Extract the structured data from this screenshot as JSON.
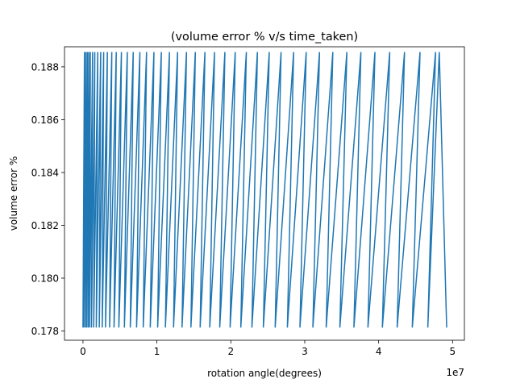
{
  "chart_data": {
    "type": "line",
    "title": "(volume error % v/s time_taken)",
    "xlabel": "rotation angle(degrees)",
    "ylabel": "volume error %",
    "x_offset_text": "1e7",
    "x_scale": 10000000,
    "xlim": [
      -0.25,
      5.16
    ],
    "ylim": [
      0.17765,
      0.18876
    ],
    "x_ticks": [
      0,
      1,
      2,
      3,
      4,
      5
    ],
    "x_tick_labels": [
      "0",
      "1",
      "2",
      "3",
      "4",
      "5"
    ],
    "y_ticks": [
      0.178,
      0.18,
      0.182,
      0.184,
      0.186,
      0.188
    ],
    "y_tick_labels": [
      "0.178",
      "0.180",
      "0.182",
      "0.184",
      "0.186",
      "0.188"
    ],
    "grid": false,
    "legend": "none",
    "line_color": "#1f77b4",
    "series": [
      {
        "y_max": 0.18856,
        "y_min": 0.17813,
        "peak_x": [
          0.02,
          0.04,
          0.06,
          0.08,
          0.1,
          0.13,
          0.16,
          0.2,
          0.24,
          0.28,
          0.33,
          0.39,
          0.45,
          0.52,
          0.6,
          0.68,
          0.77,
          0.86,
          0.96,
          1.06,
          1.17,
          1.28,
          1.4,
          1.52,
          1.65,
          1.78,
          1.92,
          2.06,
          2.21,
          2.36,
          2.52,
          2.68,
          2.85,
          3.02,
          3.2,
          3.38,
          3.57,
          3.76,
          3.95,
          4.15,
          4.35,
          4.56,
          4.77,
          4.82
        ],
        "trough_x": [
          0.01,
          0.03,
          0.05,
          0.07,
          0.09,
          0.115,
          0.145,
          0.18,
          0.22,
          0.26,
          0.305,
          0.36,
          0.42,
          0.485,
          0.56,
          0.64,
          0.725,
          0.815,
          0.91,
          1.01,
          1.115,
          1.225,
          1.34,
          1.46,
          1.585,
          1.715,
          1.85,
          1.99,
          2.135,
          2.285,
          2.44,
          2.6,
          2.765,
          2.935,
          3.11,
          3.29,
          3.475,
          3.665,
          3.855,
          4.05,
          4.25,
          4.455,
          4.665,
          4.92
        ]
      }
    ]
  }
}
